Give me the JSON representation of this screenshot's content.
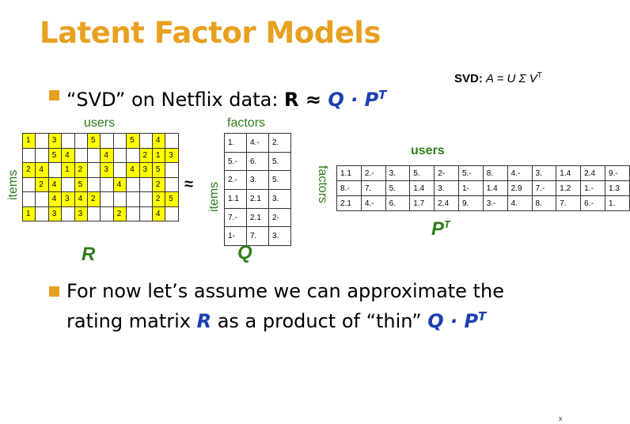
{
  "title": "Latent Factor Models",
  "svd_note": {
    "label": "SVD:",
    "equation": "A = U Σ V",
    "sup": "T"
  },
  "bullet1": {
    "prefix": "“SVD” on Netflix data: ",
    "R": "R",
    "approx": " ≈ ",
    "Q": "Q",
    "dot": " · ",
    "P": "P",
    "sup": "T"
  },
  "bullet2": {
    "line1": "For now let’s assume we can approximate the",
    "pre": "rating matrix ",
    "R": "R",
    "mid": " as a product of “thin” ",
    "Q": "Q",
    "dot": " · ",
    "P": "P",
    "sup": "T"
  },
  "labels": {
    "r_top": "users",
    "r_side": "items",
    "q_top": "factors",
    "q_side": "items",
    "p_top": "users",
    "p_side": "factors",
    "approx": "≈",
    "R": "R",
    "Q": "Q",
    "P": "P",
    "P_sup": "T"
  },
  "r_matrix": [
    [
      "1",
      "",
      "3",
      "",
      "",
      "5",
      "",
      "",
      "5",
      "",
      "4",
      ""
    ],
    [
      "",
      "",
      "5",
      "4",
      "",
      "",
      "4",
      "",
      "",
      "2",
      "1",
      "3"
    ],
    [
      "2",
      "4",
      "",
      "1",
      "2",
      "",
      "3",
      "",
      "4",
      "3",
      "5",
      ""
    ],
    [
      "",
      "2",
      "4",
      "",
      "5",
      "",
      "",
      "4",
      "",
      "",
      "2",
      ""
    ],
    [
      "",
      "",
      "4",
      "3",
      "4",
      "2",
      "",
      "",
      "",
      "",
      "2",
      "5"
    ],
    [
      "1",
      "",
      "3",
      "",
      "3",
      "",
      "",
      "2",
      "",
      "",
      "4",
      ""
    ]
  ],
  "q_matrix": [
    [
      "1.",
      "4.-",
      "2."
    ],
    [
      "5.-",
      "6.",
      "5."
    ],
    [
      "2.-",
      "3.",
      "5."
    ],
    [
      "1.1",
      "2.1",
      "3."
    ],
    [
      "7.-",
      "2.1",
      "2-"
    ],
    [
      "1-",
      "7.",
      "3."
    ]
  ],
  "p_matrix": [
    [
      "1.1",
      "2.-",
      "3.",
      "5.",
      "2-",
      "5.-",
      "8.",
      "4.-",
      "3.",
      "1.4",
      "2.4",
      "9.-"
    ],
    [
      "8.-",
      "7.",
      "5.",
      "1.4",
      "3.",
      "1-",
      "1.4",
      "2.9",
      "7.-",
      "1.2",
      "1.-",
      "1.3"
    ],
    [
      "2.1",
      "4.-",
      "6.",
      "1.7",
      "2.4",
      "9.",
      "3.-",
      "4.",
      "8.",
      "7.",
      "6.-",
      "1."
    ]
  ],
  "slide_number": "x",
  "colors": {
    "title": "#e8a020",
    "bullet": "#e8a020",
    "label_green": "#2e7d1a",
    "math_blue": "#1a3fb0",
    "cell_filled": "#ffff00"
  }
}
